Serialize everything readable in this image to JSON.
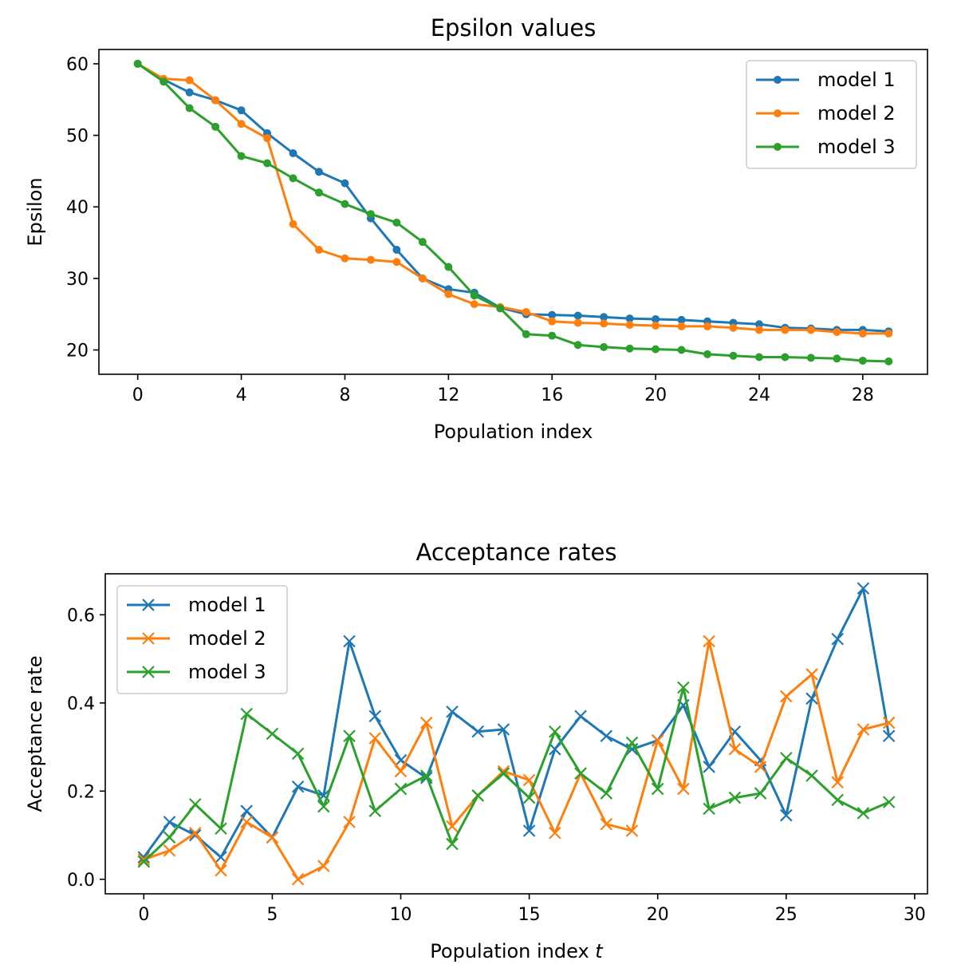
{
  "chart_data": [
    {
      "type": "line",
      "title": "Epsilon values",
      "xlabel": "Population index",
      "ylabel": "Epsilon",
      "xlim": [
        -1.5,
        30.5
      ],
      "ylim": [
        16.6,
        62.0
      ],
      "xticks": [
        0,
        4,
        8,
        12,
        16,
        20,
        24,
        28
      ],
      "yticks": [
        20,
        30,
        40,
        50,
        60
      ],
      "marker": "dot",
      "legend_position": "upper right",
      "x": [
        0,
        1,
        2,
        3,
        4,
        5,
        6,
        7,
        8,
        9,
        10,
        11,
        12,
        13,
        14,
        15,
        16,
        17,
        18,
        19,
        20,
        21,
        22,
        23,
        24,
        25,
        26,
        27,
        28,
        29
      ],
      "series": [
        {
          "name": "model 1",
          "color": "#1f77b4",
          "values": [
            60,
            57.8,
            56,
            54.9,
            53.5,
            50.3,
            47.5,
            44.9,
            43.3,
            38.4,
            34,
            30,
            28.5,
            28,
            25.9,
            25,
            24.9,
            24.8,
            24.6,
            24.4,
            24.3,
            24.2,
            24,
            23.8,
            23.6,
            23.1,
            23,
            22.8,
            22.8,
            22.6
          ]
        },
        {
          "name": "model 2",
          "color": "#ff7f0e",
          "values": [
            60,
            57.9,
            57.7,
            54.9,
            51.6,
            49.6,
            37.6,
            34,
            32.8,
            32.6,
            32.3,
            30,
            27.8,
            26.4,
            26,
            25.3,
            24,
            23.8,
            23.7,
            23.5,
            23.4,
            23.3,
            23.3,
            23.1,
            22.8,
            22.8,
            22.8,
            22.5,
            22.3,
            22.3
          ]
        },
        {
          "name": "model 3",
          "color": "#2ca02c",
          "values": [
            60,
            57.5,
            53.8,
            51.2,
            47.1,
            46.1,
            44,
            42,
            40.4,
            39,
            37.8,
            35.1,
            31.6,
            27.6,
            25.8,
            22.2,
            22,
            20.7,
            20.4,
            20.2,
            20.1,
            20,
            19.4,
            19.2,
            19,
            19,
            18.9,
            18.8,
            18.5,
            18.4
          ]
        }
      ]
    },
    {
      "type": "line",
      "title": "Acceptance rates",
      "xlabel": "Population index",
      "xlabel_var": "t",
      "ylabel": "Acceptance rate",
      "xlim": [
        -1.5,
        30.5
      ],
      "ylim": [
        -0.033,
        0.693
      ],
      "xticks": [
        0,
        5,
        10,
        15,
        20,
        25,
        30
      ],
      "yticks": [
        0.0,
        0.2,
        0.4,
        0.6
      ],
      "ytick_labels": [
        "0.0",
        "0.2",
        "0.4",
        "0.6"
      ],
      "marker": "x",
      "legend_position": "upper left",
      "x": [
        0,
        1,
        2,
        3,
        4,
        5,
        6,
        7,
        8,
        9,
        10,
        11,
        12,
        13,
        14,
        15,
        16,
        17,
        18,
        19,
        20,
        21,
        22,
        23,
        24,
        25,
        26,
        27,
        28,
        29
      ],
      "series": [
        {
          "name": "model 1",
          "color": "#1f77b4",
          "values": [
            0.05,
            0.13,
            0.1,
            0.05,
            0.155,
            0.095,
            0.21,
            0.19,
            0.54,
            0.37,
            0.27,
            0.23,
            0.38,
            0.335,
            0.34,
            0.11,
            0.295,
            0.37,
            0.325,
            0.295,
            0.315,
            0.395,
            0.255,
            0.335,
            0.27,
            0.145,
            0.41,
            0.545,
            0.66,
            0.325
          ]
        },
        {
          "name": "model 2",
          "color": "#ff7f0e",
          "values": [
            0.045,
            0.065,
            0.105,
            0.02,
            0.13,
            0.095,
            0.0,
            0.03,
            0.13,
            0.32,
            0.245,
            0.355,
            0.12,
            0.19,
            0.245,
            0.225,
            0.105,
            0.24,
            0.125,
            0.11,
            0.315,
            0.205,
            0.54,
            0.295,
            0.255,
            0.415,
            0.465,
            0.22,
            0.34,
            0.355
          ]
        },
        {
          "name": "model 3",
          "color": "#2ca02c",
          "values": [
            0.04,
            0.095,
            0.17,
            0.115,
            0.375,
            0.33,
            0.285,
            0.165,
            0.325,
            0.155,
            0.205,
            0.235,
            0.08,
            0.19,
            0.24,
            0.185,
            0.335,
            0.24,
            0.195,
            0.31,
            0.205,
            0.435,
            0.16,
            0.185,
            0.195,
            0.275,
            0.235,
            0.18,
            0.15,
            0.175
          ]
        }
      ]
    }
  ]
}
